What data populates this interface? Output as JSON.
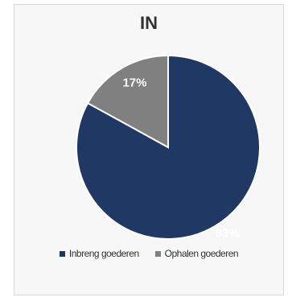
{
  "chart_data": {
    "type": "pie",
    "title": "IN",
    "categories": [
      "Inbreng goederen",
      "Ophalen goederen"
    ],
    "values": [
      83,
      17
    ],
    "labels": [
      "83%",
      "17%"
    ],
    "colors": [
      "#1f3864",
      "#808080"
    ],
    "legend_position": "bottom"
  }
}
